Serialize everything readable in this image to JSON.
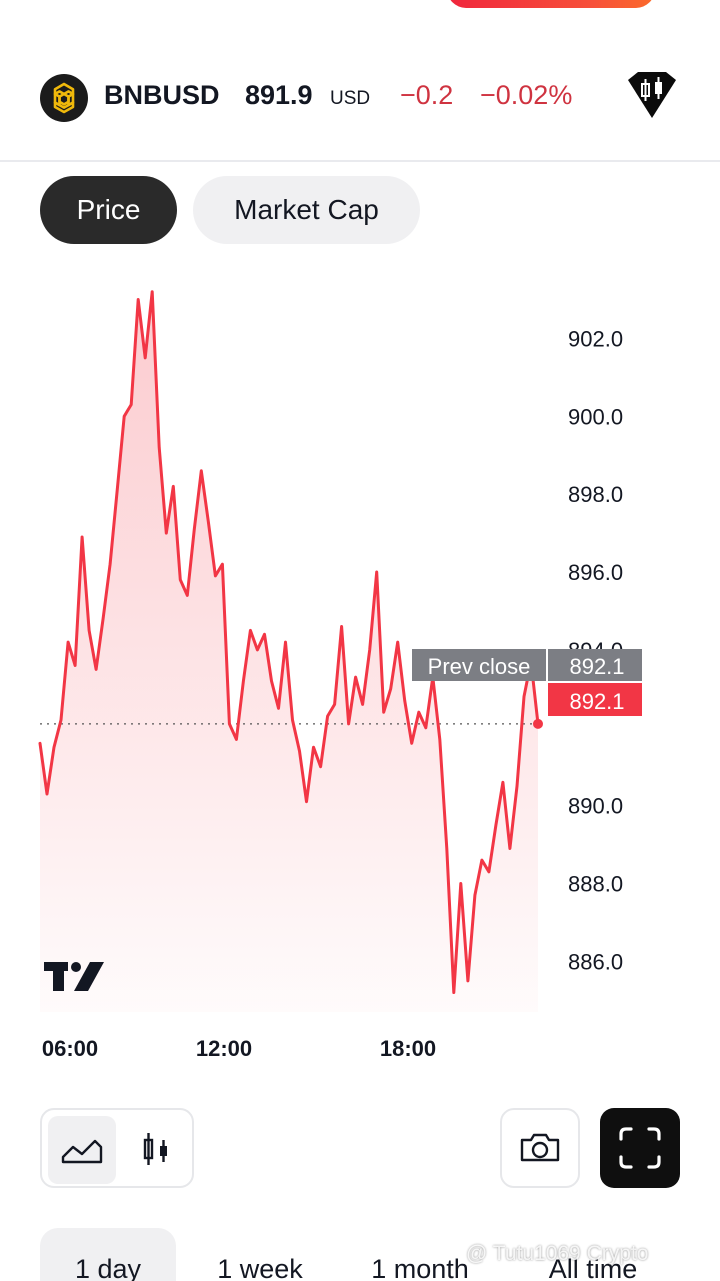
{
  "header": {
    "symbol": "BNBUSD",
    "price": "891.9",
    "currency": "USD",
    "change": "−0.2",
    "change_percent": "−0.02%",
    "logo_icon": "bnb-logo-icon",
    "chart_icon": "candlestick-badge-icon",
    "negative_color": "#cf3340"
  },
  "tabs": [
    {
      "label": "Price",
      "active": true
    },
    {
      "label": "Market Cap",
      "active": false
    }
  ],
  "chart_data": {
    "type": "area",
    "x_tick_labels": [
      "06:00",
      "12:00",
      "18:00"
    ],
    "y_tick_labels": [
      "902.0",
      "900.0",
      "898.0",
      "896.0",
      "894.0",
      "890.0",
      "888.0",
      "886.0"
    ],
    "ylim": [
      884.7,
      903.5
    ],
    "prev_close_label": "Prev close",
    "prev_close_value": "892.1",
    "last_value_label": "892.1",
    "line_color": "#f23645",
    "values": [
      891.6,
      890.3,
      891.5,
      892.2,
      894.2,
      893.6,
      896.9,
      894.5,
      893.5,
      894.8,
      896.2,
      898.1,
      900.0,
      900.3,
      903.0,
      901.5,
      903.2,
      899.2,
      897.0,
      898.2,
      895.8,
      895.4,
      897.1,
      898.6,
      897.3,
      895.9,
      896.2,
      892.1,
      891.7,
      893.2,
      894.5,
      894.0,
      894.4,
      893.2,
      892.5,
      894.2,
      892.2,
      891.4,
      890.1,
      891.5,
      891.0,
      892.3,
      892.6,
      894.6,
      892.1,
      893.3,
      892.6,
      894.0,
      896.0,
      892.4,
      893.0,
      894.2,
      892.7,
      891.6,
      892.4,
      892.0,
      893.3,
      891.7,
      888.9,
      885.2,
      888.0,
      885.5,
      887.7,
      888.6,
      888.3,
      889.5,
      890.6,
      888.9,
      890.5,
      892.8,
      893.7,
      892.1
    ]
  },
  "chart_type_buttons": [
    {
      "icon": "area-chart-icon",
      "active": true
    },
    {
      "icon": "candlestick-icon",
      "active": false
    }
  ],
  "actions": {
    "snapshot_icon": "camera-icon",
    "fullscreen_icon": "fullscreen-icon"
  },
  "ranges": [
    {
      "label": "1 day",
      "active": true
    },
    {
      "label": "1 week",
      "active": false
    },
    {
      "label": "1 month",
      "active": false
    },
    {
      "label": "All time",
      "active": false
    }
  ],
  "watermark": "@ Tutu1069 Crypto"
}
